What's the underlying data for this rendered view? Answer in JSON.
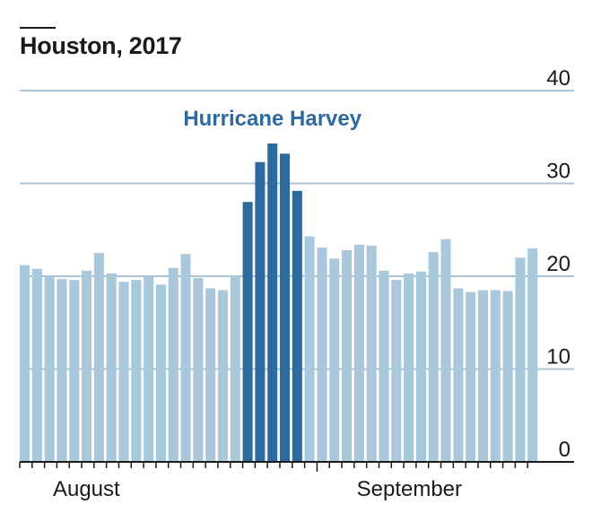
{
  "chart_data": {
    "type": "bar",
    "title": "Houston, 2017",
    "xlabel": "",
    "ylabel": "",
    "ylim": [
      0,
      40
    ],
    "yticks": [
      0,
      10,
      20,
      30,
      40
    ],
    "y_axis_side": "right",
    "grid": true,
    "month_labels": [
      "August",
      "September"
    ],
    "annotation": {
      "text": "Hurricane Harvey",
      "color": "#2e6a9e"
    },
    "colors": {
      "base": "#a9c8dc",
      "highlight": "#2e6a9e",
      "grid": "#a9c4d6",
      "axis": "#1a1a1a",
      "text": "#1a1a1a"
    },
    "values": [
      21.2,
      20.8,
      19.9,
      19.7,
      19.6,
      20.6,
      22.5,
      20.3,
      19.4,
      19.6,
      19.9,
      19.1,
      20.9,
      22.4,
      19.8,
      18.7,
      18.5,
      20.0,
      28.0,
      32.3,
      34.3,
      33.2,
      29.2,
      24.3,
      23.1,
      21.9,
      22.8,
      23.4,
      23.3,
      20.6,
      19.6,
      20.3,
      20.5,
      22.6,
      24.0,
      18.7,
      18.3,
      18.5,
      18.5,
      18.4,
      22.0,
      23.0
    ],
    "highlight_indices": [
      18,
      19,
      20,
      21,
      22
    ]
  }
}
